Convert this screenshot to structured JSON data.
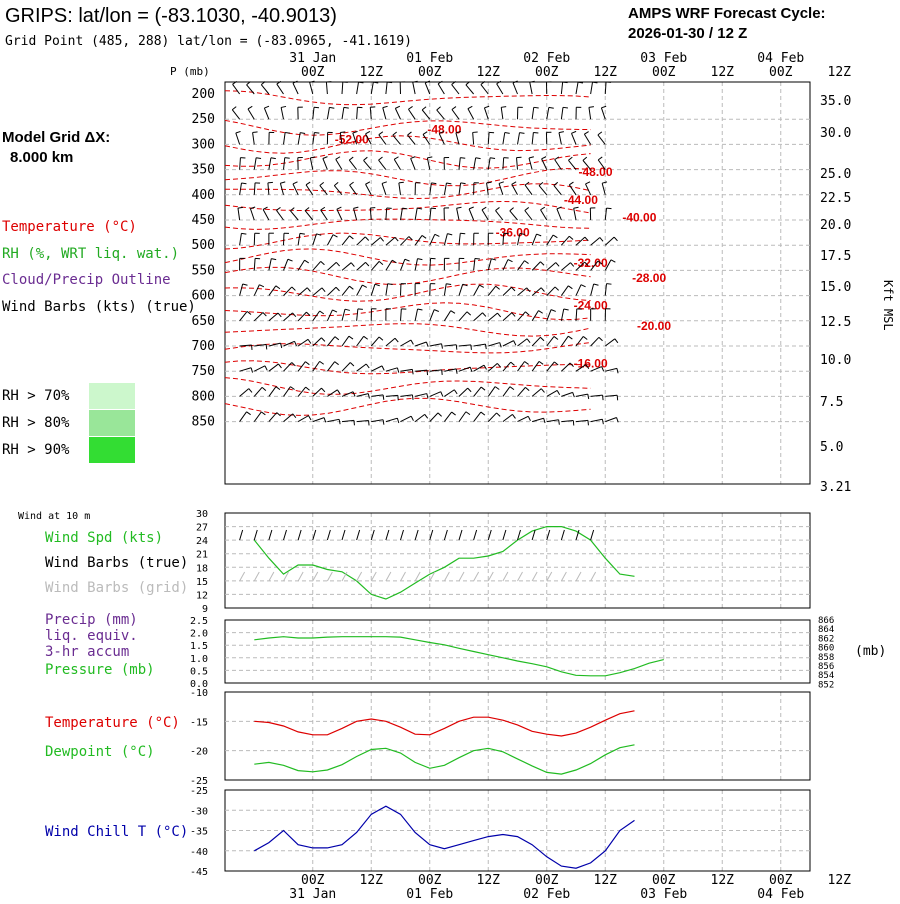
{
  "header": {
    "title": "GRIPS:  lat/lon = (-83.1030, -40.9013)",
    "subtitle": "Grid Point (485, 288) lat/lon = (-83.0965, -41.1619)",
    "cycle_label": "AMPS WRF Forecast Cycle:",
    "cycle_value": "2026-01-30 / 12  Z"
  },
  "time_axis": {
    "ticks": [
      "00Z",
      "12Z",
      "00Z",
      "12Z",
      "00Z",
      "12Z",
      "00Z",
      "12Z",
      "00Z",
      "12Z"
    ],
    "dates": [
      "31 Jan",
      "01 Feb",
      "02 Feb",
      "03 Feb",
      "04 Feb"
    ]
  },
  "left_panel": {
    "grid_label": "Model Grid ΔX:",
    "grid_value": "8.000 km",
    "temperature_label": "Temperature (°C)",
    "rh_label": "RH (%, WRT liq. wat.)",
    "cloud_label": "Cloud/Precip Outline",
    "barbs_label": "Wind Barbs (kts) (true)",
    "rh_legend": [
      {
        "label": "RH > 70%",
        "color": "#ccf7cc"
      },
      {
        "label": "RH > 80%",
        "color": "#99e699"
      },
      {
        "label": "RH > 90%",
        "color": "#33dd33"
      }
    ]
  },
  "colors": {
    "temperature": "#dd0000",
    "rh_text": "#dd0000",
    "cloud": "#6a2c91",
    "green": "#22bb22",
    "blue": "#0000aa",
    "grid": "#bbbbbb"
  },
  "chart_data": [
    {
      "type": "line",
      "name": "pressure-time-section",
      "ylabel": "P (mb)",
      "y_ticks": [
        "200",
        "250",
        "300",
        "350",
        "400",
        "450",
        "500",
        "550",
        "600",
        "650",
        "700",
        "750",
        "800",
        "850"
      ],
      "right_label": "Kft MSL",
      "right_ticks": [
        "35.0",
        "30.0",
        "25.0",
        "22.5",
        "20.0",
        "17.5",
        "15.0",
        "12.5",
        "10.0",
        "7.5",
        "5.0",
        "3.21"
      ],
      "temperature_contours": [
        {
          "label": "-48.00",
          "pressure": 270,
          "hour": 27
        },
        {
          "label": "-52.00",
          "pressure": 290,
          "hour": 8
        },
        {
          "label": "-48.00",
          "pressure": 355,
          "hour": 58
        },
        {
          "label": "-44.00",
          "pressure": 410,
          "hour": 55
        },
        {
          "label": "-40.00",
          "pressure": 445,
          "hour": 67
        },
        {
          "label": "-36.00",
          "pressure": 475,
          "hour": 41
        },
        {
          "label": "-32.00",
          "pressure": 535,
          "hour": 57
        },
        {
          "label": "-28.00",
          "pressure": 565,
          "hour": 69
        },
        {
          "label": "-24.00",
          "pressure": 620,
          "hour": 57
        },
        {
          "label": "-20.00",
          "pressure": 660,
          "hour": 70
        },
        {
          "label": "-16.00",
          "pressure": 735,
          "hour": 57
        }
      ]
    },
    {
      "type": "line",
      "name": "wind-10m",
      "title": "Wind at 10 m",
      "legend": [
        "Wind Spd (kts)",
        "Wind Barbs (true)",
        "Wind Barbs (grid)"
      ],
      "ylim": [
        9,
        30
      ],
      "y_ticks": [
        "30",
        "27",
        "24",
        "21",
        "18",
        "15",
        "12",
        "9"
      ],
      "x_hours": [
        -12,
        -9,
        -6,
        -3,
        0,
        3,
        6,
        9,
        12,
        15,
        18,
        21,
        24,
        27,
        30,
        33,
        36,
        39,
        42,
        45,
        48,
        51,
        54,
        57,
        60,
        63,
        66,
        69,
        72
      ],
      "series": [
        {
          "name": "Wind Spd (kts)",
          "values": [
            24,
            20,
            16.5,
            18.5,
            18.5,
            17.5,
            17,
            15,
            12,
            11,
            12.5,
            14.5,
            16.5,
            18,
            20,
            20,
            20.5,
            21.5,
            24,
            26,
            27,
            27,
            26,
            24,
            20,
            16.5,
            16,
            null,
            null
          ]
        }
      ]
    },
    {
      "type": "line",
      "name": "precip-pressure",
      "legend": [
        "Precip (mm)",
        "liq. equiv.",
        "3-hr accum",
        "Pressure (mb)"
      ],
      "ylim": [
        0,
        2.5
      ],
      "y_ticks": [
        "2.5",
        "2.0",
        "1.5",
        "1.0",
        "0.5",
        "0.0"
      ],
      "right_ticks": [
        "866",
        "864",
        "862",
        "860",
        "858",
        "856",
        "854",
        "852"
      ],
      "right_unit": "(mb)",
      "series": [
        {
          "name": "Pressure (mb)",
          "values": [
            861.6,
            862.0,
            862.3,
            862.0,
            862.0,
            862.2,
            862.3,
            862.3,
            862.3,
            862.3,
            862.2,
            861.6,
            861.0,
            860.5,
            859.7,
            859.0,
            858.3,
            857.6,
            856.9,
            856.3,
            855.6,
            854.5,
            853.7,
            853.6,
            853.6,
            854.3,
            855.2,
            856.4,
            857.2
          ]
        }
      ]
    },
    {
      "type": "line",
      "name": "temperature-dewpoint",
      "legend": [
        "Temperature (°C)",
        "Dewpoint (°C)"
      ],
      "ylim": [
        -25,
        -10
      ],
      "y_ticks": [
        "-10",
        "-15",
        "-20",
        "-25"
      ],
      "series": [
        {
          "name": "Temperature (°C)",
          "values": [
            -15.0,
            -15.2,
            -15.8,
            -16.8,
            -17.3,
            -17.3,
            -16.2,
            -15.0,
            -14.6,
            -15.0,
            -16.0,
            -17.2,
            -17.3,
            -16.2,
            -15.0,
            -14.3,
            -14.3,
            -14.8,
            -15.6,
            -16.7,
            -17.2,
            -17.5,
            -17.0,
            -16.0,
            -14.8,
            -13.7,
            -13.2,
            null,
            null
          ]
        },
        {
          "name": "Dewpoint (°C)",
          "values": [
            -22.3,
            -22.0,
            -22.5,
            -23.4,
            -23.6,
            -23.3,
            -22.4,
            -21.0,
            -19.8,
            -19.6,
            -20.4,
            -22.0,
            -23.0,
            -22.5,
            -21.2,
            -20.0,
            -19.6,
            -20.2,
            -21.4,
            -22.6,
            -23.7,
            -24.0,
            -23.3,
            -22.2,
            -20.7,
            -19.5,
            -19.0,
            null,
            null
          ]
        }
      ]
    },
    {
      "type": "line",
      "name": "wind-chill",
      "legend": [
        "Wind Chill T (°C)"
      ],
      "ylim": [
        -45,
        -25
      ],
      "y_ticks": [
        "-25",
        "-30",
        "-35",
        "-40",
        "-45"
      ],
      "series": [
        {
          "name": "Wind Chill T (°C)",
          "values": [
            -40,
            -38,
            -35,
            -38.5,
            -39.3,
            -39.3,
            -38.5,
            -35.5,
            -31,
            -29,
            -31,
            -35.5,
            -38.5,
            -39.5,
            -38.5,
            -37.5,
            -36.5,
            -36,
            -36.5,
            -38.5,
            -41.5,
            -43.8,
            -44.3,
            -43,
            -40,
            -35,
            -32.5,
            null,
            null
          ]
        }
      ]
    }
  ]
}
